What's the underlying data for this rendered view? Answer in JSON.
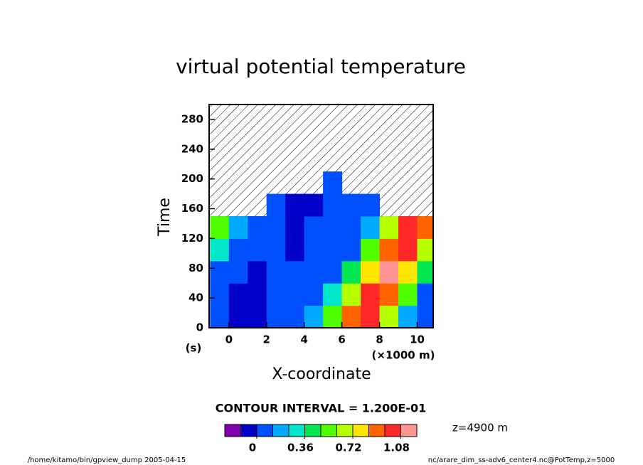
{
  "chart_data": {
    "type": "contour",
    "title": "virtual potential temperature",
    "xlabel": "X-coordinate",
    "x_unit": "(×1000 m)",
    "ylabel": "Time",
    "y_unit": "(s)",
    "x": [
      -0.5,
      0.5,
      1.5,
      2.5,
      3.5,
      4.5,
      5.5,
      6.5,
      7.5,
      8.5,
      9.5,
      10.5
    ],
    "y": [
      15,
      45,
      75,
      105,
      135,
      165,
      195,
      225,
      255,
      285
    ],
    "z": [
      [
        0.02,
        -0.05,
        -0.05,
        0.02,
        0.02,
        0.17,
        0.55,
        0.94,
        0.98,
        0.6,
        0.21,
        0.02
      ],
      [
        0.02,
        -0.05,
        -0.05,
        0.02,
        0.02,
        0.02,
        0.28,
        0.66,
        1.04,
        0.87,
        0.49,
        0.11
      ],
      [
        0.02,
        0.02,
        -0.05,
        0.02,
        0.02,
        0.02,
        0.02,
        0.38,
        0.77,
        1.15,
        0.77,
        0.38
      ],
      [
        0.28,
        0.02,
        0.02,
        0.02,
        -0.05,
        0.02,
        0.02,
        0.11,
        0.49,
        0.87,
        1.04,
        0.66
      ],
      [
        0.55,
        0.17,
        0.02,
        0.02,
        -0.05,
        0.02,
        0.02,
        0.02,
        0.21,
        0.6,
        0.98,
        0.94
      ],
      [
        null,
        null,
        null,
        0.02,
        -0.05,
        -0.05,
        0.02,
        0.02,
        0.02,
        null,
        null,
        null
      ],
      [
        null,
        null,
        null,
        null,
        null,
        null,
        0.05,
        null,
        null,
        null,
        null,
        null
      ],
      [
        null,
        null,
        null,
        null,
        null,
        null,
        null,
        null,
        null,
        null,
        null,
        null
      ],
      [
        null,
        null,
        null,
        null,
        null,
        null,
        null,
        null,
        null,
        null,
        null,
        null
      ],
      [
        null,
        null,
        null,
        null,
        null,
        null,
        null,
        null,
        null,
        null,
        null,
        null
      ]
    ],
    "xlim": [
      -1.05,
      10.85
    ],
    "ylim": [
      0,
      300
    ],
    "xticks": [
      0,
      2,
      4,
      6,
      8,
      10
    ],
    "yticks": [
      0,
      40,
      80,
      120,
      160,
      200,
      240,
      280
    ],
    "levels": [
      -0.24,
      -0.12,
      0,
      0.12,
      0.24,
      0.36,
      0.48,
      0.6,
      0.72,
      0.84,
      0.96,
      1.08,
      1.2
    ],
    "colors": [
      "#8000b0",
      "#0000c8",
      "#0050ff",
      "#00aaff",
      "#00e6c8",
      "#00e650",
      "#50ff00",
      "#b4ff00",
      "#ffe600",
      "#ff6400",
      "#ff2828",
      "#ff9696"
    ],
    "colorbar_ticks": [
      0,
      0.36,
      0.72,
      1.08
    ],
    "contour_interval": "CONTOUR INTERVAL = 1.200E-01",
    "annotation": "z=4900 m",
    "footer_left": "/home/kitamo/bin/gpview_dump  2005-04-15",
    "footer_right": "nc/arare_dim_ss-adv6_center4.nc@PotTemp,z=5000"
  }
}
